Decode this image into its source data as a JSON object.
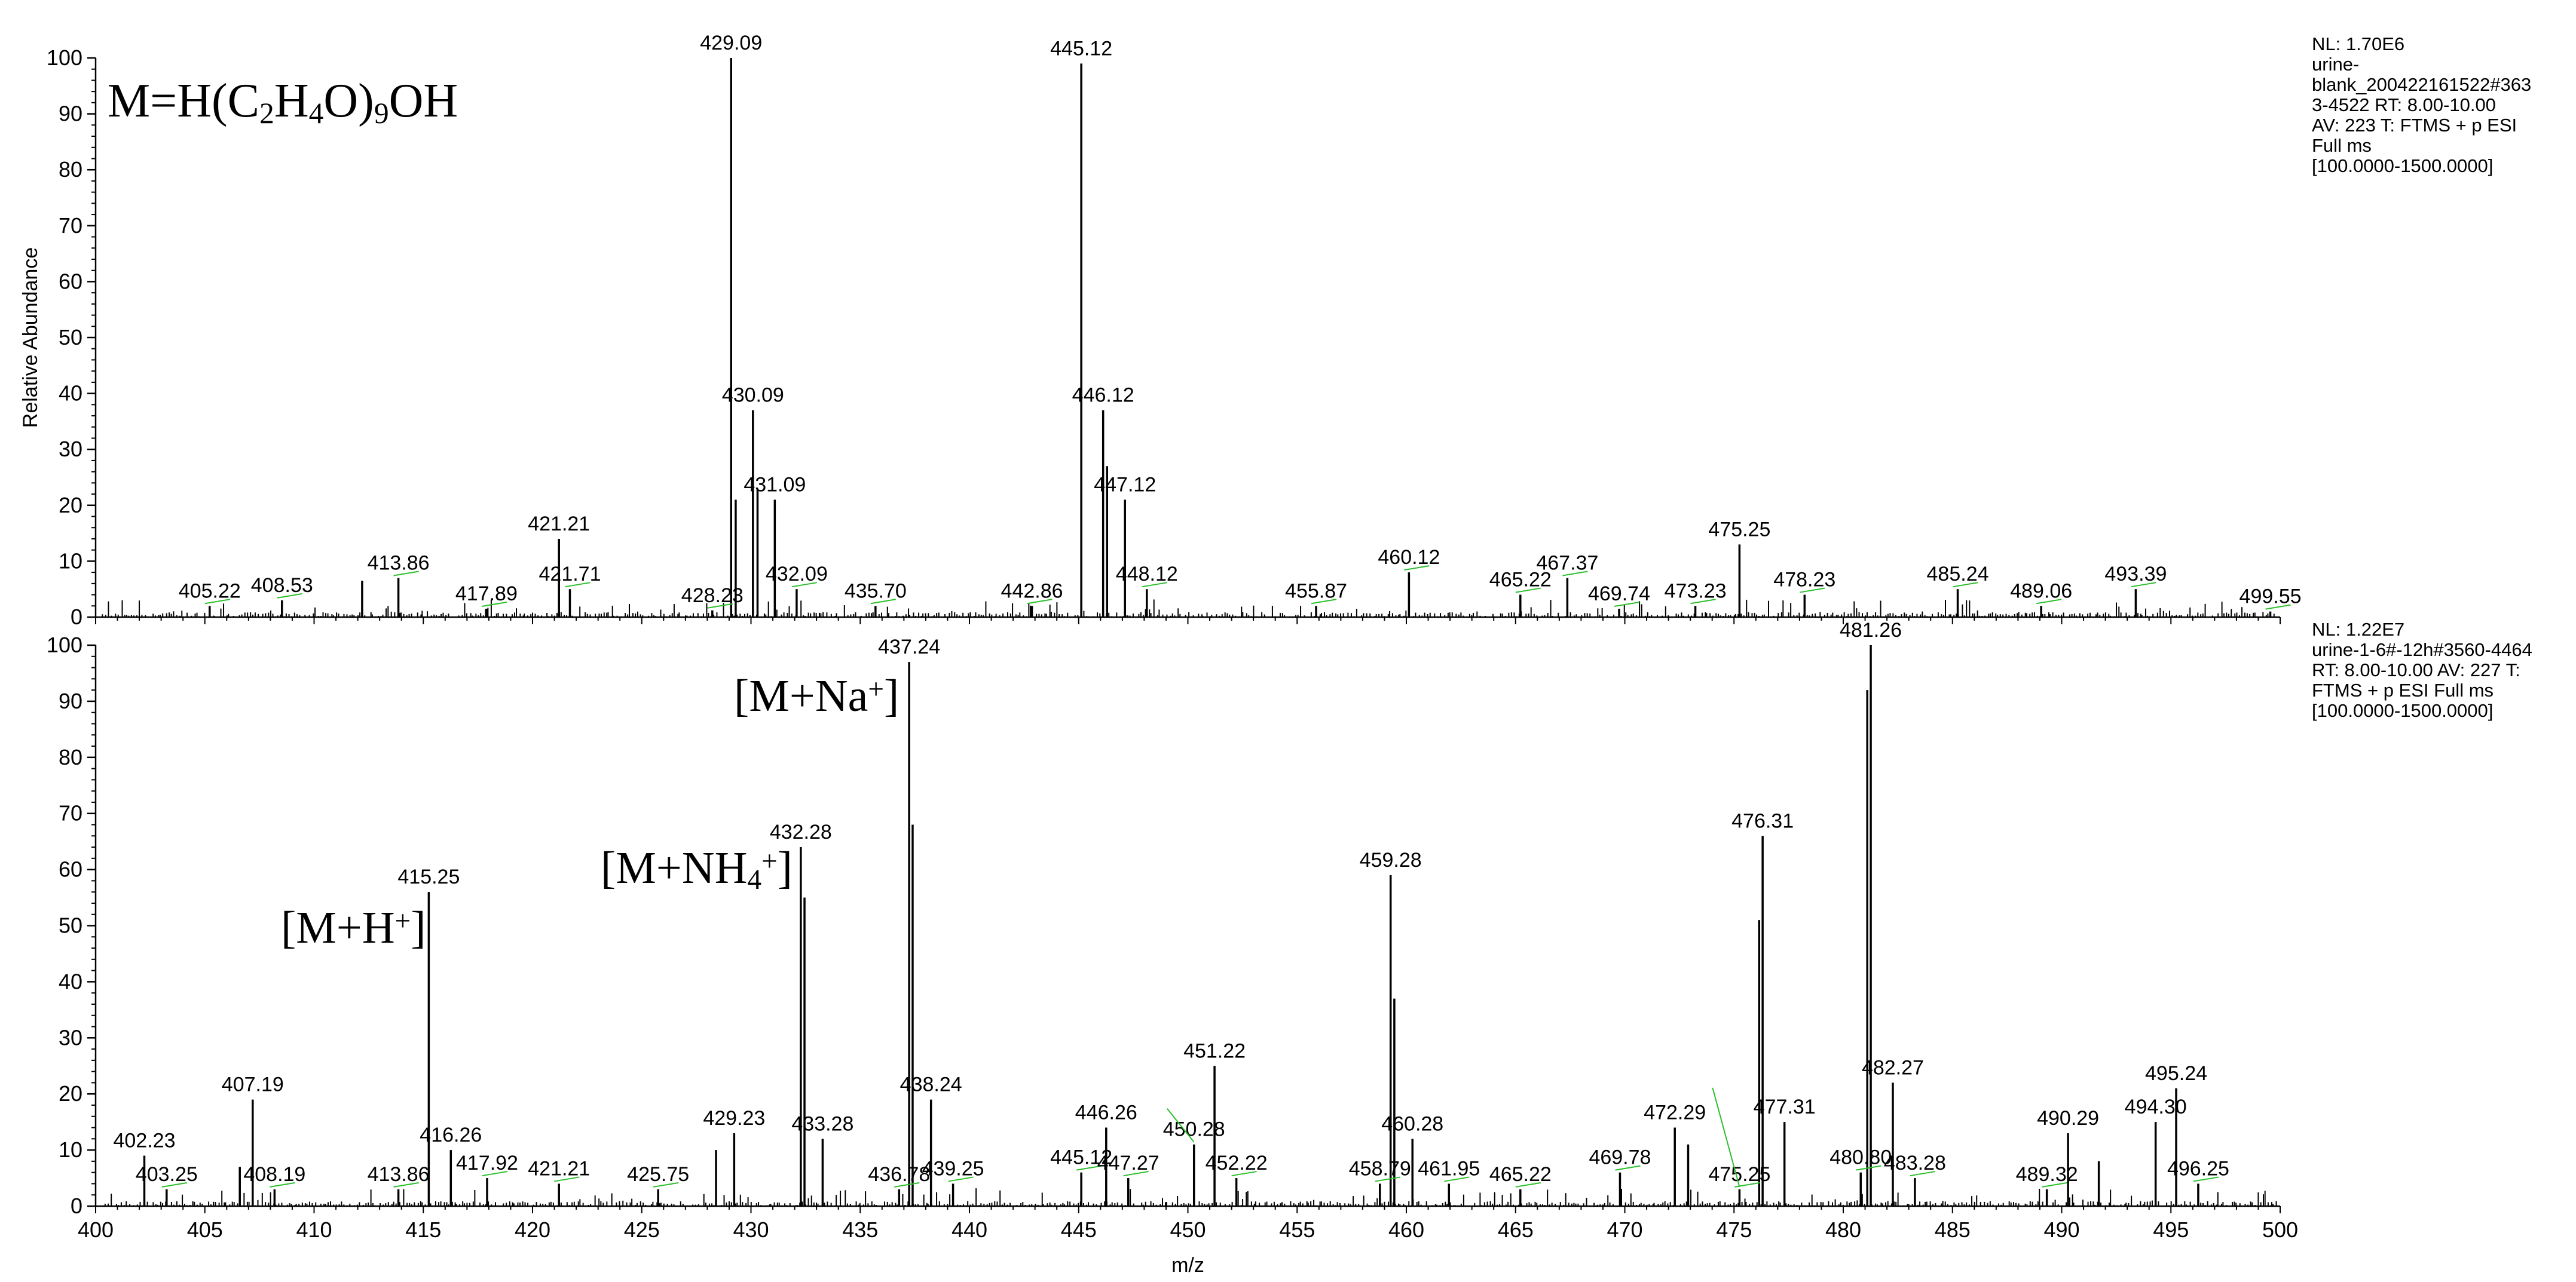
{
  "chart_data": [
    {
      "type": "line",
      "ylabel": "Relative Abundance",
      "xlim": [
        400,
        500
      ],
      "ylim": [
        0,
        100
      ],
      "yticks": [
        0,
        10,
        20,
        30,
        40,
        50,
        60,
        70,
        80,
        90,
        100
      ],
      "formula_label": "M=H(C2H4O)9OH",
      "meta": [
        "NL: 1.70E6",
        "urine-",
        "blank_200422161522#363",
        "3-4522  RT: 8.00-10.00",
        "AV: 223 T: FTMS + p ESI",
        "Full ms",
        "[100.0000-1500.0000]"
      ],
      "peaks": [
        {
          "x": 405.22,
          "y": 2,
          "label": "405.22"
        },
        {
          "x": 408.53,
          "y": 3,
          "label": "408.53"
        },
        {
          "x": 412.2,
          "y": 6.5,
          "label": ""
        },
        {
          "x": 413.86,
          "y": 7,
          "label": "413.86"
        },
        {
          "x": 417.89,
          "y": 1.5,
          "label": "417.89"
        },
        {
          "x": 421.21,
          "y": 14,
          "label": "421.21"
        },
        {
          "x": 421.71,
          "y": 5,
          "label": "421.71"
        },
        {
          "x": 428.23,
          "y": 1.2,
          "label": "428.23"
        },
        {
          "x": 429.09,
          "y": 100,
          "label": "429.09"
        },
        {
          "x": 429.3,
          "y": 21,
          "label": ""
        },
        {
          "x": 430.09,
          "y": 37,
          "label": "430.09"
        },
        {
          "x": 430.3,
          "y": 23,
          "label": ""
        },
        {
          "x": 431.09,
          "y": 21,
          "label": "431.09"
        },
        {
          "x": 432.09,
          "y": 5,
          "label": "432.09"
        },
        {
          "x": 435.7,
          "y": 2,
          "label": "435.70"
        },
        {
          "x": 442.86,
          "y": 2,
          "label": "442.86"
        },
        {
          "x": 445.12,
          "y": 99,
          "label": "445.12"
        },
        {
          "x": 446.12,
          "y": 37,
          "label": "446.12"
        },
        {
          "x": 446.3,
          "y": 27,
          "label": ""
        },
        {
          "x": 447.12,
          "y": 21,
          "label": "447.12"
        },
        {
          "x": 448.12,
          "y": 5,
          "label": "448.12"
        },
        {
          "x": 455.87,
          "y": 2,
          "label": "455.87"
        },
        {
          "x": 460.12,
          "y": 8,
          "label": "460.12"
        },
        {
          "x": 465.22,
          "y": 4,
          "label": "465.22"
        },
        {
          "x": 467.37,
          "y": 7,
          "label": "467.37"
        },
        {
          "x": 469.74,
          "y": 1.5,
          "label": "469.74"
        },
        {
          "x": 473.23,
          "y": 2,
          "label": "473.23"
        },
        {
          "x": 475.25,
          "y": 13,
          "label": "475.25"
        },
        {
          "x": 478.23,
          "y": 4,
          "label": "478.23"
        },
        {
          "x": 485.24,
          "y": 5,
          "label": "485.24"
        },
        {
          "x": 489.06,
          "y": 2,
          "label": "489.06"
        },
        {
          "x": 493.39,
          "y": 5,
          "label": "493.39"
        },
        {
          "x": 499.55,
          "y": 1,
          "label": "499.55"
        }
      ]
    },
    {
      "type": "line",
      "xlabel": "m/z",
      "xlim": [
        400,
        500
      ],
      "ylim": [
        0,
        100
      ],
      "xticks": [
        400,
        405,
        410,
        415,
        420,
        425,
        430,
        435,
        440,
        445,
        450,
        455,
        460,
        465,
        470,
        475,
        480,
        485,
        490,
        495,
        500
      ],
      "yticks": [
        0,
        10,
        20,
        30,
        40,
        50,
        60,
        70,
        80,
        90,
        100
      ],
      "meta": [
        "NL: 1.22E7",
        "urine-1-6#-12h#3560-4464",
        " RT: 8.00-10.00  AV: 227 T:",
        "FTMS + p ESI Full ms",
        "[100.0000-1500.0000]"
      ],
      "annotations": [
        {
          "label": "[M+H+]",
          "x": 415.25
        },
        {
          "label": "[M+NH4+]",
          "x": 432.28
        },
        {
          "label": "[M+Na+]",
          "x": 437.24
        }
      ],
      "peaks": [
        {
          "x": 402.23,
          "y": 9,
          "label": "402.23"
        },
        {
          "x": 403.25,
          "y": 3,
          "label": "403.25"
        },
        {
          "x": 406.6,
          "y": 7,
          "label": ""
        },
        {
          "x": 407.19,
          "y": 19,
          "label": "407.19"
        },
        {
          "x": 408.19,
          "y": 3,
          "label": "408.19"
        },
        {
          "x": 413.86,
          "y": 3,
          "label": "413.86"
        },
        {
          "x": 415.25,
          "y": 56,
          "label": "415.25"
        },
        {
          "x": 416.26,
          "y": 10,
          "label": "416.26"
        },
        {
          "x": 417.92,
          "y": 5,
          "label": "417.92"
        },
        {
          "x": 421.21,
          "y": 4,
          "label": "421.21"
        },
        {
          "x": 425.75,
          "y": 3,
          "label": "425.75"
        },
        {
          "x": 428.4,
          "y": 10,
          "label": ""
        },
        {
          "x": 429.23,
          "y": 13,
          "label": "429.23"
        },
        {
          "x": 432.28,
          "y": 64,
          "label": "432.28"
        },
        {
          "x": 432.45,
          "y": 55,
          "label": ""
        },
        {
          "x": 433.28,
          "y": 12,
          "label": "433.28"
        },
        {
          "x": 436.78,
          "y": 3,
          "label": "436.78"
        },
        {
          "x": 437.24,
          "y": 97,
          "label": "437.24"
        },
        {
          "x": 437.4,
          "y": 68,
          "label": ""
        },
        {
          "x": 438.24,
          "y": 19,
          "label": "438.24"
        },
        {
          "x": 439.25,
          "y": 4,
          "label": "439.25"
        },
        {
          "x": 445.12,
          "y": 6,
          "label": "445.12"
        },
        {
          "x": 446.26,
          "y": 14,
          "label": "446.26"
        },
        {
          "x": 447.27,
          "y": 5,
          "label": "447.27"
        },
        {
          "x": 450.28,
          "y": 11,
          "label": "450.28"
        },
        {
          "x": 451.22,
          "y": 25,
          "label": "451.22"
        },
        {
          "x": 452.22,
          "y": 5,
          "label": "452.22"
        },
        {
          "x": 458.79,
          "y": 4,
          "label": "458.79"
        },
        {
          "x": 459.28,
          "y": 59,
          "label": "459.28"
        },
        {
          "x": 459.45,
          "y": 37,
          "label": ""
        },
        {
          "x": 460.28,
          "y": 12,
          "label": "460.28"
        },
        {
          "x": 461.95,
          "y": 4,
          "label": "461.95"
        },
        {
          "x": 465.22,
          "y": 3,
          "label": "465.22"
        },
        {
          "x": 469.78,
          "y": 6,
          "label": "469.78"
        },
        {
          "x": 472.29,
          "y": 14,
          "label": "472.29"
        },
        {
          "x": 472.9,
          "y": 11,
          "label": ""
        },
        {
          "x": 475.25,
          "y": 3,
          "label": "475.25"
        },
        {
          "x": 476.31,
          "y": 66,
          "label": "476.31"
        },
        {
          "x": 476.15,
          "y": 51,
          "label": ""
        },
        {
          "x": 477.31,
          "y": 15,
          "label": "477.31"
        },
        {
          "x": 480.8,
          "y": 6,
          "label": "480.80"
        },
        {
          "x": 481.26,
          "y": 100,
          "label": "481.26"
        },
        {
          "x": 481.1,
          "y": 92,
          "label": ""
        },
        {
          "x": 482.27,
          "y": 22,
          "label": "482.27"
        },
        {
          "x": 483.28,
          "y": 5,
          "label": "483.28"
        },
        {
          "x": 489.32,
          "y": 3,
          "label": "489.32"
        },
        {
          "x": 490.29,
          "y": 13,
          "label": "490.29"
        },
        {
          "x": 491.7,
          "y": 8,
          "label": ""
        },
        {
          "x": 494.3,
          "y": 15,
          "label": "494.30"
        },
        {
          "x": 495.24,
          "y": 21,
          "label": "495.24"
        },
        {
          "x": 496.25,
          "y": 4,
          "label": "496.25"
        }
      ]
    }
  ]
}
